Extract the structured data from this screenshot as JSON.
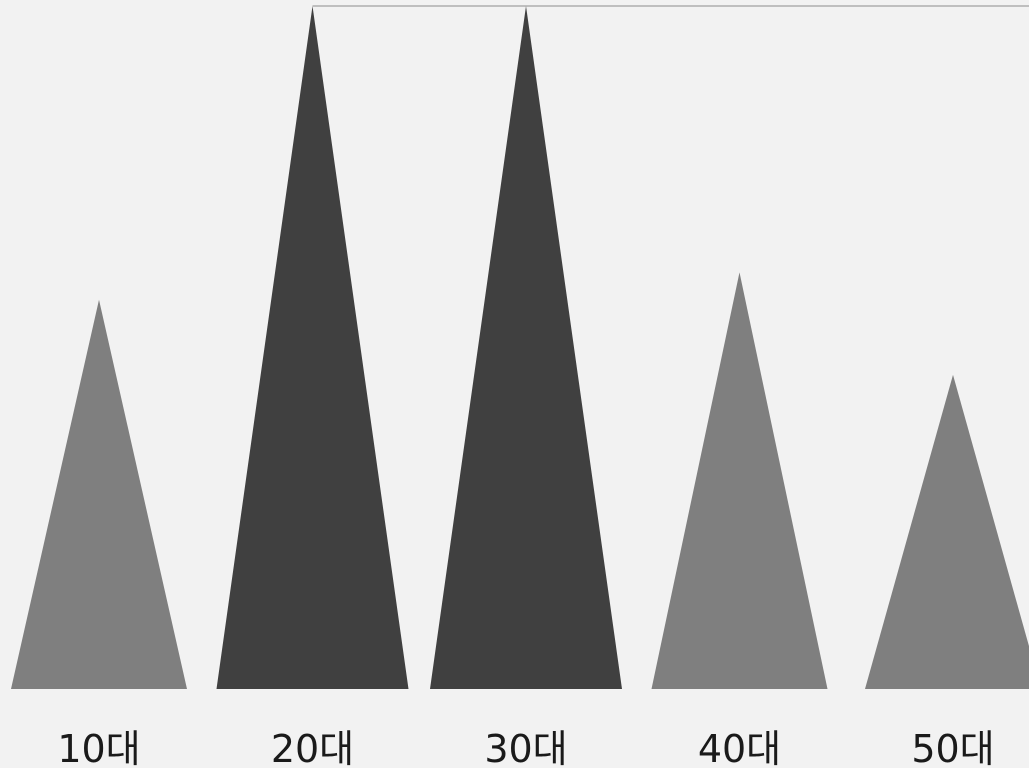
{
  "chart_data": {
    "type": "bar",
    "mark_shape": "triangle",
    "categories": [
      "10대",
      "20대",
      "30대",
      "40대",
      "50대"
    ],
    "values": [
      57,
      100,
      100,
      61,
      46
    ],
    "highlighted": [
      false,
      true,
      true,
      false,
      false
    ],
    "ylim": [
      0,
      100
    ],
    "reference_line_value": 100,
    "colors": {
      "background": "#f2f2f2",
      "highlight": "#404040",
      "normal": "#7f7f7f",
      "reference_line": "#bfbfbf",
      "label": "#1a1a1a"
    }
  }
}
